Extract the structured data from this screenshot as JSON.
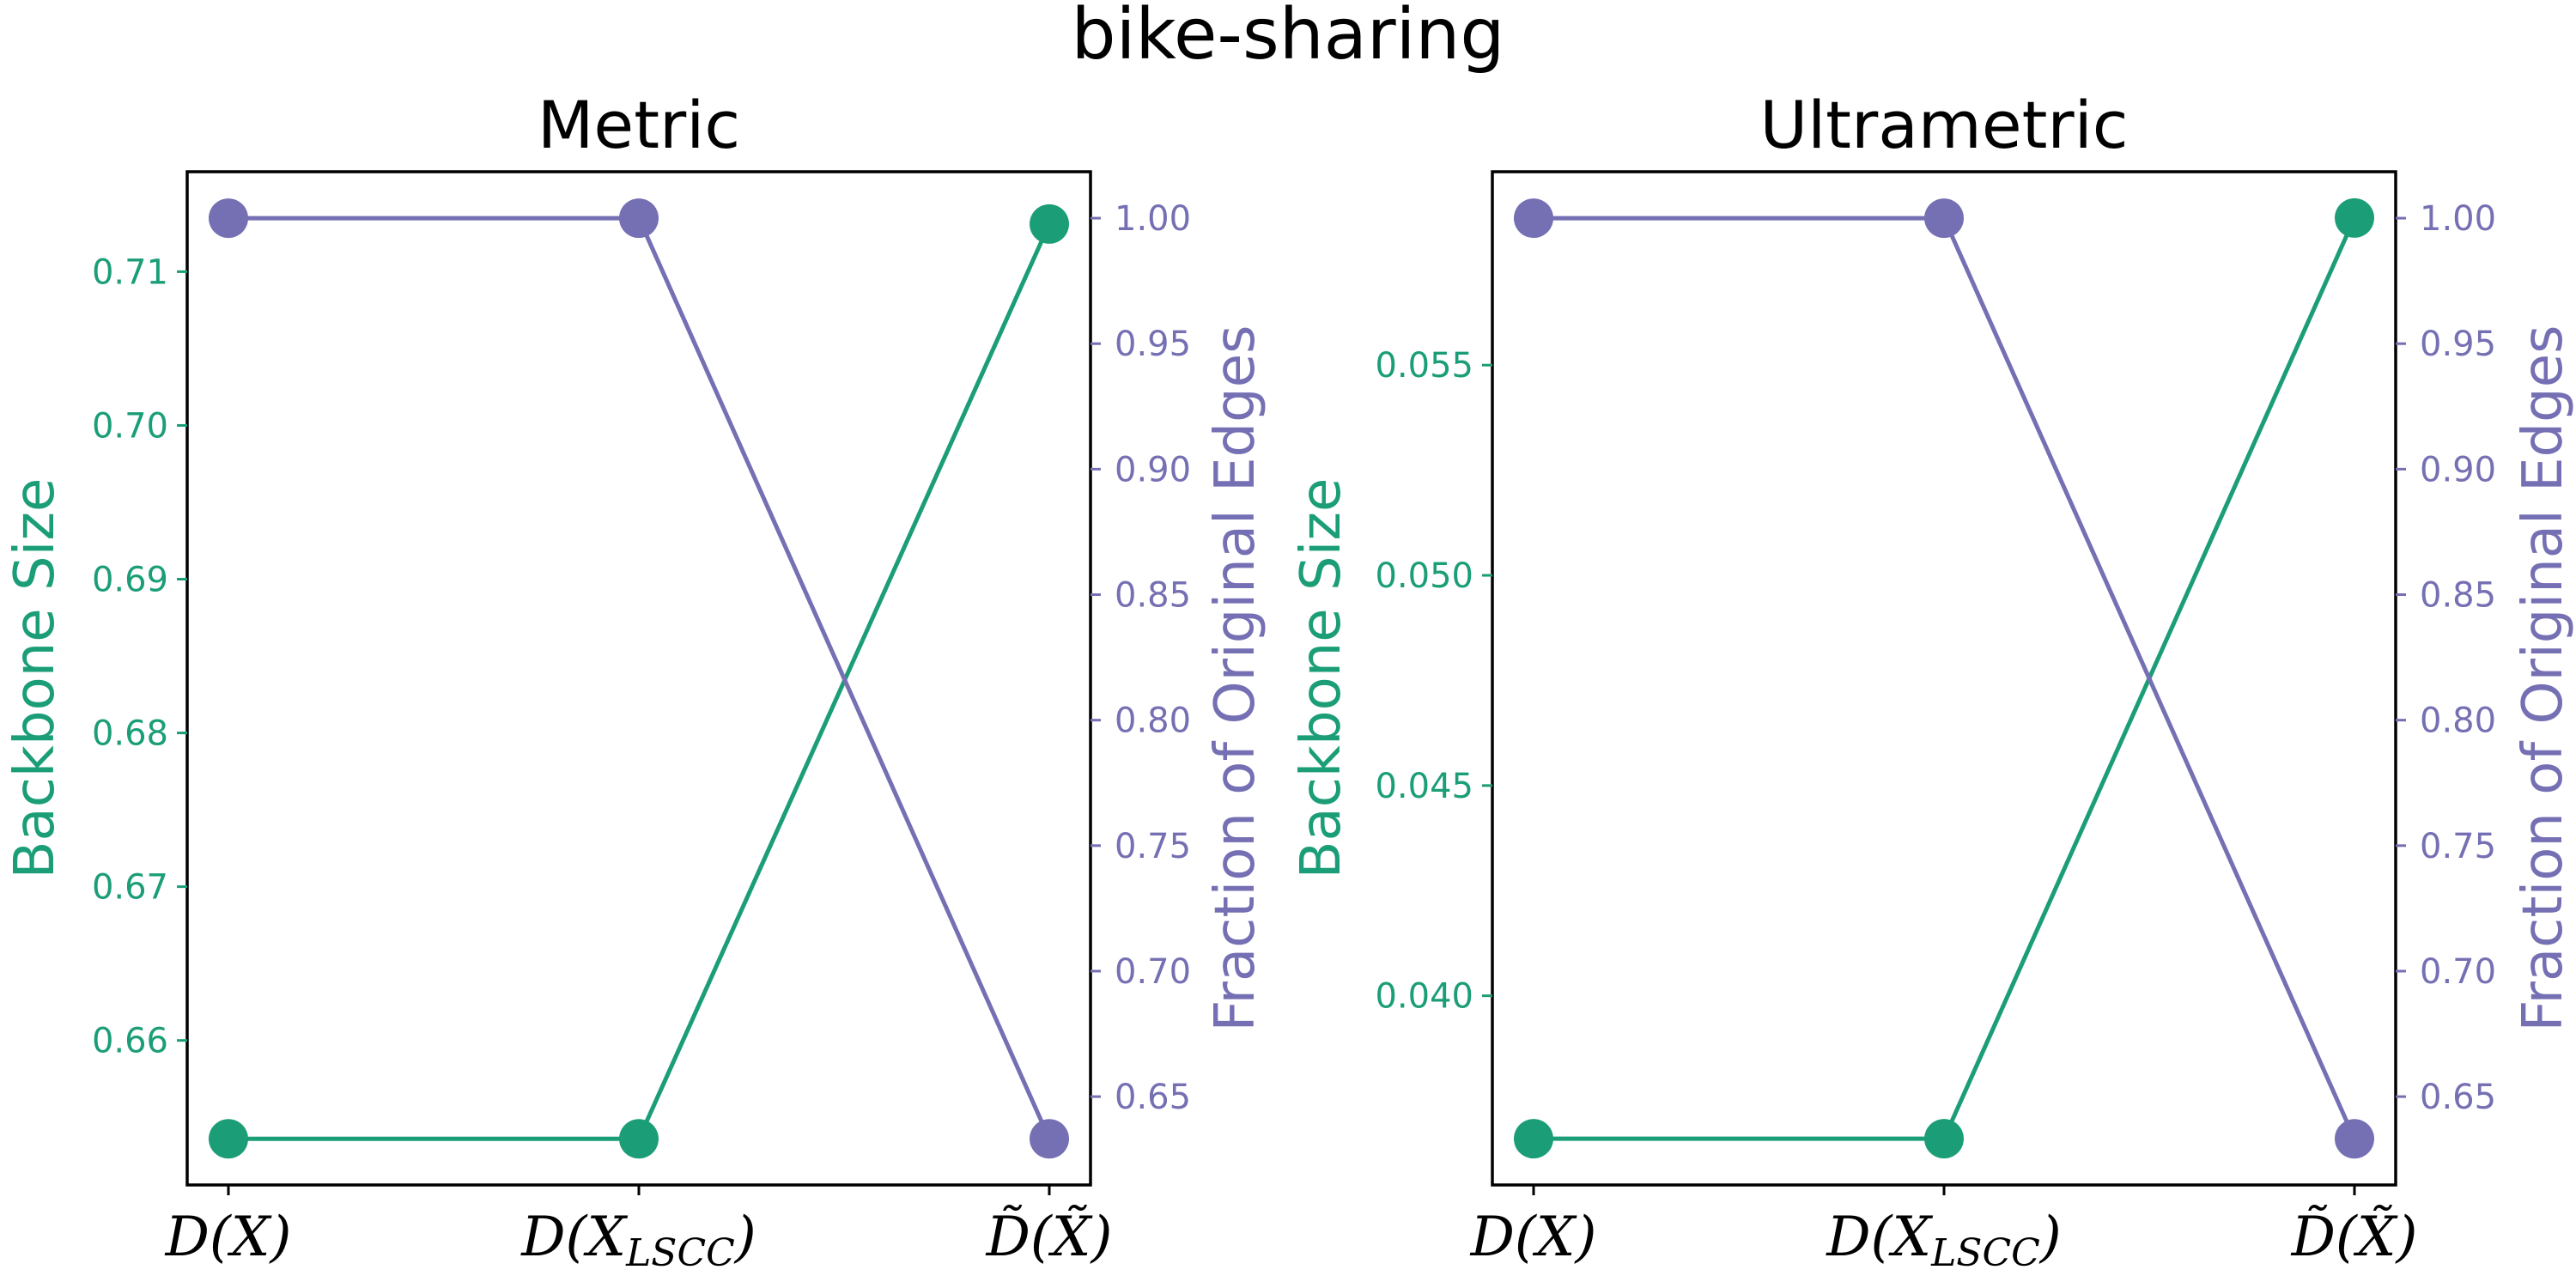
{
  "figure_title": "bike-sharing",
  "colors": {
    "backbone": "#1b9e77",
    "fraction": "#7570b3"
  },
  "chart_data": [
    {
      "type": "line",
      "title": "Metric",
      "categories": [
        "D(X)",
        "D(X_LSCC)",
        "D̃(X̃)"
      ],
      "left_axis": {
        "label": "Backbone Size",
        "ylim": [
          0.6506,
          0.7165
        ],
        "ticks": [
          0.66,
          0.67,
          0.68,
          0.69,
          0.7,
          0.71
        ],
        "tick_labels": [
          "0.66",
          "0.67",
          "0.68",
          "0.69",
          "0.70",
          "0.71"
        ]
      },
      "right_axis": {
        "label": "Fraction of Original Edges",
        "ylim": [
          0.6148,
          1.0185
        ],
        "ticks": [
          0.65,
          0.7,
          0.75,
          0.8,
          0.85,
          0.9,
          0.95,
          1.0
        ],
        "tick_labels": [
          "0.65",
          "0.70",
          "0.75",
          "0.80",
          "0.85",
          "0.90",
          "0.95",
          "1.00"
        ]
      },
      "series": [
        {
          "name": "Backbone Size",
          "axis": "left",
          "values": [
            0.6536,
            0.6536,
            0.7131
          ]
        },
        {
          "name": "Fraction of Original Edges",
          "axis": "right",
          "values": [
            1.0,
            1.0,
            0.6332
          ]
        }
      ]
    },
    {
      "type": "line",
      "title": "Ultrametric",
      "categories": [
        "D(X)",
        "D(X_LSCC)",
        "D̃(X̃)"
      ],
      "left_axis": {
        "label": "Backbone Size",
        "ylim": [
          0.0355,
          0.0596
        ],
        "ticks": [
          0.04,
          0.045,
          0.05,
          0.055
        ],
        "tick_labels": [
          "0.040",
          "0.045",
          "0.050",
          "0.055"
        ]
      },
      "right_axis": {
        "label": "Fraction of Original Edges",
        "ylim": [
          0.6148,
          1.0185
        ],
        "ticks": [
          0.65,
          0.7,
          0.75,
          0.8,
          0.85,
          0.9,
          0.95,
          1.0
        ],
        "tick_labels": [
          "0.65",
          "0.70",
          "0.75",
          "0.80",
          "0.85",
          "0.90",
          "0.95",
          "1.00"
        ]
      },
      "series": [
        {
          "name": "Backbone Size",
          "axis": "left",
          "values": [
            0.0366,
            0.0366,
            0.0585
          ]
        },
        {
          "name": "Fraction of Original Edges",
          "axis": "right",
          "values": [
            1.0,
            1.0,
            0.6332
          ]
        }
      ]
    }
  ]
}
